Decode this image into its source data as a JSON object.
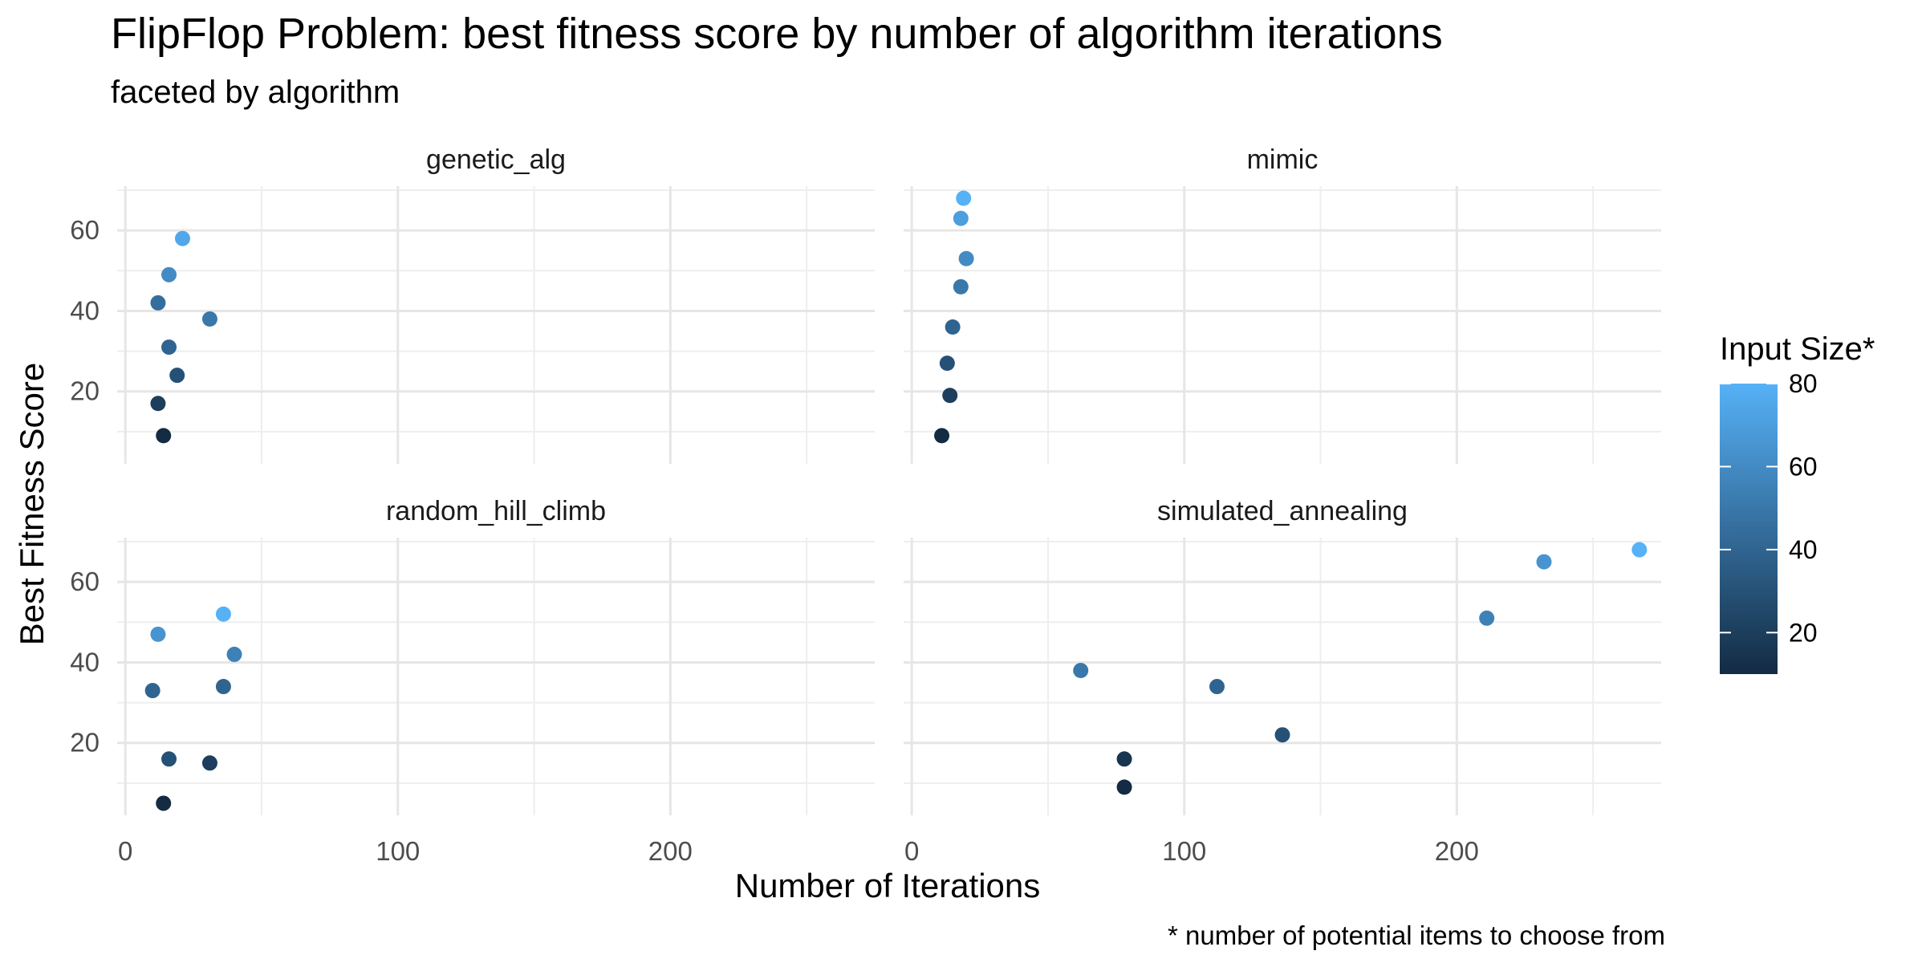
{
  "chart_data": {
    "type": "scatter",
    "title": "FlipFlop Problem: best fitness score by number of algorithm iterations",
    "subtitle": "faceted by algorithm",
    "xlabel": "Number of Iterations",
    "ylabel": "Best Fitness Score",
    "caption": "* number of potential items to choose from",
    "xlim": [
      -3,
      275
    ],
    "ylim": [
      2,
      71
    ],
    "x_ticks": [
      0,
      100,
      200
    ],
    "y_ticks": [
      20,
      40,
      60
    ],
    "grid": true,
    "legend": {
      "title": "Input Size*",
      "position": "right",
      "color_range": [
        10,
        80
      ],
      "ticks": [
        20,
        40,
        60,
        80
      ],
      "low_color": "#132b43",
      "high_color": "#56b1f7"
    },
    "facets": [
      {
        "name": "genetic_alg",
        "points": [
          {
            "x": 14,
            "y": 9,
            "size": 10
          },
          {
            "x": 12,
            "y": 17,
            "size": 20
          },
          {
            "x": 19,
            "y": 24,
            "size": 30
          },
          {
            "x": 16,
            "y": 31,
            "size": 40
          },
          {
            "x": 31,
            "y": 38,
            "size": 50
          },
          {
            "x": 12,
            "y": 42,
            "size": 45
          },
          {
            "x": 16,
            "y": 49,
            "size": 60
          },
          {
            "x": 21,
            "y": 58,
            "size": 75
          }
        ]
      },
      {
        "name": "mimic",
        "points": [
          {
            "x": 11,
            "y": 9,
            "size": 10
          },
          {
            "x": 14,
            "y": 19,
            "size": 20
          },
          {
            "x": 13,
            "y": 27,
            "size": 30
          },
          {
            "x": 15,
            "y": 36,
            "size": 40
          },
          {
            "x": 18,
            "y": 46,
            "size": 50
          },
          {
            "x": 20,
            "y": 53,
            "size": 60
          },
          {
            "x": 18,
            "y": 63,
            "size": 70
          },
          {
            "x": 19,
            "y": 68,
            "size": 80
          }
        ]
      },
      {
        "name": "random_hill_climb",
        "points": [
          {
            "x": 14,
            "y": 5,
            "size": 10
          },
          {
            "x": 31,
            "y": 15,
            "size": 20
          },
          {
            "x": 16,
            "y": 16,
            "size": 30
          },
          {
            "x": 10,
            "y": 33,
            "size": 40
          },
          {
            "x": 36,
            "y": 34,
            "size": 40
          },
          {
            "x": 40,
            "y": 42,
            "size": 55
          },
          {
            "x": 12,
            "y": 47,
            "size": 65
          },
          {
            "x": 36,
            "y": 52,
            "size": 80
          }
        ]
      },
      {
        "name": "simulated_annealing",
        "points": [
          {
            "x": 78,
            "y": 9,
            "size": 10
          },
          {
            "x": 78,
            "y": 16,
            "size": 15
          },
          {
            "x": 136,
            "y": 22,
            "size": 30
          },
          {
            "x": 112,
            "y": 34,
            "size": 40
          },
          {
            "x": 62,
            "y": 38,
            "size": 50
          },
          {
            "x": 211,
            "y": 51,
            "size": 55
          },
          {
            "x": 232,
            "y": 65,
            "size": 65
          },
          {
            "x": 267,
            "y": 68,
            "size": 80
          }
        ]
      }
    ]
  }
}
